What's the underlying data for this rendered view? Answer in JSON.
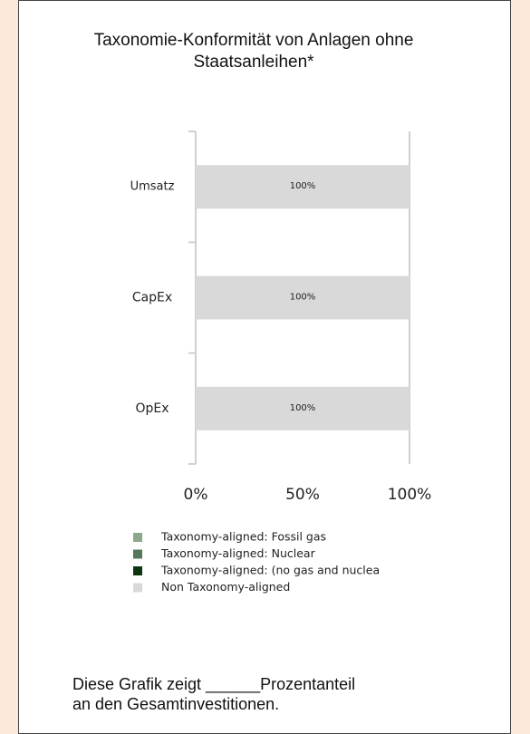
{
  "chart_data": {
    "type": "stacked_barh",
    "title": "Taxonomie-Konformität von Anlagen ohne Staatsanleihen*",
    "categories": [
      "Umsatz",
      "CapEx",
      "OpEx"
    ],
    "series": [
      {
        "name": "Taxonomy-aligned: Fossil gas",
        "color": "#8da78a",
        "values": [
          0,
          0,
          0
        ]
      },
      {
        "name": "Taxonomy-aligned: Nuclear",
        "color": "#55775a",
        "values": [
          0,
          0,
          0
        ]
      },
      {
        "name": "Taxonomy-aligned: (no gas and nuclea",
        "color": "#0f3410",
        "values": [
          0,
          0,
          0
        ]
      },
      {
        "name": "Non Taxonomy-aligned",
        "color": "#d9d9d9",
        "values": [
          100,
          100,
          100
        ],
        "value_labels": [
          "100%",
          "100%",
          "100%"
        ]
      }
    ],
    "xlim": [
      0,
      100
    ],
    "xticks": [
      {
        "value": 0,
        "label": "0%"
      },
      {
        "value": 50,
        "label": "50%"
      },
      {
        "value": 100,
        "label": "100%"
      }
    ],
    "footnote": "Diese Grafik zeigt ______Prozentanteil an den Gesamtinvestitionen."
  }
}
